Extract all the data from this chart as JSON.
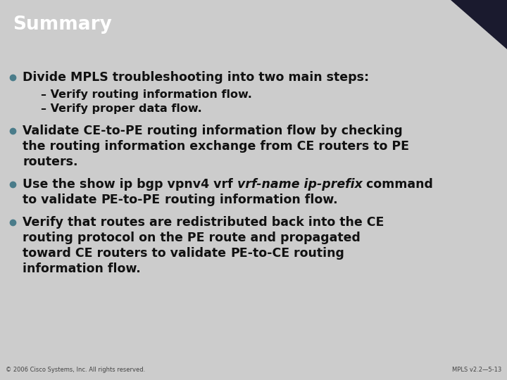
{
  "title": "Summary",
  "title_bg_color": "#3d7a8a",
  "title_text_color": "#ffffff",
  "body_bg_color": "#cccccc",
  "content_bg_color": "#ffffff",
  "footer_bg_color": "#aaaaaa",
  "footer_text_color": "#444444",
  "footer_left": "© 2006 Cisco Systems, Inc. All rights reserved.",
  "footer_right": "MPLS v2.2—5-13",
  "bullet_color": "#4a7c8a",
  "text_color": "#111111",
  "corner_color": "#1a1a2e",
  "fs_main": 12.5,
  "fs_sub": 11.5,
  "fs_title": 19,
  "fs_footer": 6.0
}
